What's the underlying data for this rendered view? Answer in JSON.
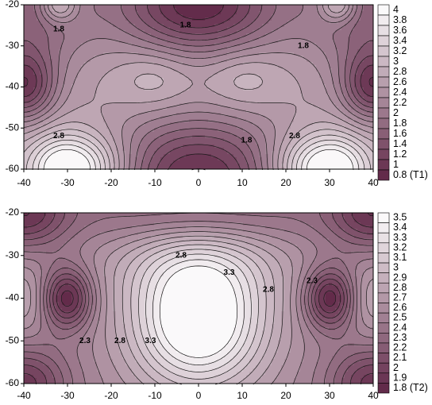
{
  "chart_data": [
    {
      "type": "heatmap",
      "subtype": "filled-contour",
      "title": "",
      "xlabel": "",
      "ylabel": "",
      "xlim": [
        -40,
        40
      ],
      "ylim": [
        -60,
        -20
      ],
      "x_ticks": [
        "-40",
        "-30",
        "-20",
        "-10",
        "0",
        "10",
        "20",
        "30",
        "40"
      ],
      "y_ticks": [
        "-20",
        "-30",
        "-40",
        "-50",
        "-60"
      ],
      "colorbar": {
        "levels": [
          "4",
          "3.8",
          "3.6",
          "3.4",
          "3.2",
          "3",
          "2.8",
          "2.6",
          "2.4",
          "2.2",
          "2",
          "1.8",
          "1.6",
          "1.4",
          "1.2",
          "1",
          "0.8 (T1)"
        ],
        "min": 0.8,
        "max": 4.0,
        "color_low": "#5e2545",
        "color_high": "#ffffff"
      },
      "field": {
        "base": 2.85,
        "terms": [
          {
            "x": -30,
            "y": -60,
            "amp": 1.9,
            "sx": 9,
            "sy": 6
          },
          {
            "x": 30,
            "y": -60,
            "amp": 1.9,
            "sx": 9,
            "sy": 6
          },
          {
            "x": 0,
            "y": -62,
            "amp": -1.9,
            "sx": 17,
            "sy": 11
          },
          {
            "x": 0,
            "y": -20,
            "amp": -2.0,
            "sx": 14,
            "sy": 9
          },
          {
            "x": -40,
            "y": -40,
            "amp": -1.4,
            "sx": 5,
            "sy": 6
          },
          {
            "x": 40,
            "y": -40,
            "amp": -1.4,
            "sx": 5,
            "sy": 6
          },
          {
            "x": -10,
            "y": -38,
            "amp": 0.35,
            "sx": 6,
            "sy": 5
          },
          {
            "x": 10,
            "y": -38,
            "amp": 0.35,
            "sx": 6,
            "sy": 5
          },
          {
            "x": -40,
            "y": -20,
            "amp": -1.2,
            "sx": 11,
            "sy": 14
          },
          {
            "x": 40,
            "y": -20,
            "amp": -1.2,
            "sx": 11,
            "sy": 14
          },
          {
            "x": -32,
            "y": -20,
            "amp": 1.0,
            "sx": 3,
            "sy": 3
          },
          {
            "x": 32,
            "y": -20,
            "amp": 1.0,
            "sx": 3,
            "sy": 3
          },
          {
            "x": -40,
            "y": -60,
            "amp": -0.6,
            "sx": 5,
            "sy": 6
          },
          {
            "x": 40,
            "y": -60,
            "amp": -0.6,
            "sx": 5,
            "sy": 6
          }
        ]
      },
      "contour_labels": [
        {
          "text": "1.8",
          "x": -32,
          "y": -26
        },
        {
          "text": "1.8",
          "x": -3,
          "y": -25
        },
        {
          "text": "1.8",
          "x": 24,
          "y": -30
        },
        {
          "text": "2.8",
          "x": -32,
          "y": -52
        },
        {
          "text": "1.8",
          "x": 11,
          "y": -53
        },
        {
          "text": "2.8",
          "x": 22,
          "y": -52
        }
      ]
    },
    {
      "type": "heatmap",
      "subtype": "filled-contour",
      "title": "",
      "xlabel": "",
      "ylabel": "",
      "xlim": [
        -40,
        40
      ],
      "ylim": [
        -60,
        -20
      ],
      "x_ticks": [
        "-40",
        "-30",
        "-20",
        "-10",
        "0",
        "10",
        "20",
        "30",
        "40"
      ],
      "y_ticks": [
        "-20",
        "-30",
        "-40",
        "-50",
        "-60"
      ],
      "colorbar": {
        "levels": [
          "3.5",
          "3.4",
          "3.3",
          "3.2",
          "3.1",
          "3",
          "2.9",
          "2.8",
          "2.7",
          "2.6",
          "2.5",
          "2.4",
          "2.3",
          "2.2",
          "2.1",
          "2",
          "1.9",
          "1.8 (T2)"
        ],
        "min": 1.8,
        "max": 3.5,
        "color_low": "#5e2545",
        "color_high": "#ffffff"
      },
      "field": {
        "base": 2.55,
        "terms": [
          {
            "x": 0,
            "y": -46,
            "amp": 1.1,
            "sx": 11,
            "sy": 11
          },
          {
            "x": 0,
            "y": -32,
            "amp": 0.35,
            "sx": 14,
            "sy": 7
          },
          {
            "x": -30,
            "y": -40,
            "amp": -0.75,
            "sx": 4,
            "sy": 5
          },
          {
            "x": 30,
            "y": -40,
            "amp": -0.75,
            "sx": 4,
            "sy": 5
          },
          {
            "x": -40,
            "y": -60,
            "amp": -0.6,
            "sx": 7,
            "sy": 6
          },
          {
            "x": 40,
            "y": -60,
            "amp": -0.6,
            "sx": 7,
            "sy": 6
          },
          {
            "x": -40,
            "y": -20,
            "amp": -0.6,
            "sx": 7,
            "sy": 6
          },
          {
            "x": 40,
            "y": -20,
            "amp": -0.6,
            "sx": 7,
            "sy": 6
          },
          {
            "x": -40,
            "y": -40,
            "amp": 0.25,
            "sx": 4,
            "sy": 6
          },
          {
            "x": 40,
            "y": -40,
            "amp": 0.25,
            "sx": 4,
            "sy": 6
          },
          {
            "x": 0,
            "y": -20,
            "amp": -0.3,
            "sx": 22,
            "sy": 5
          }
        ]
      },
      "contour_labels": [
        {
          "text": "2.8",
          "x": -4,
          "y": -30
        },
        {
          "text": "3.3",
          "x": 7,
          "y": -34
        },
        {
          "text": "2.8",
          "x": 16,
          "y": -38
        },
        {
          "text": "2.3",
          "x": 26,
          "y": -36
        },
        {
          "text": "2.3",
          "x": -26,
          "y": -50
        },
        {
          "text": "2.8",
          "x": -18,
          "y": -50
        },
        {
          "text": "3.3",
          "x": -11,
          "y": -50
        }
      ]
    }
  ]
}
